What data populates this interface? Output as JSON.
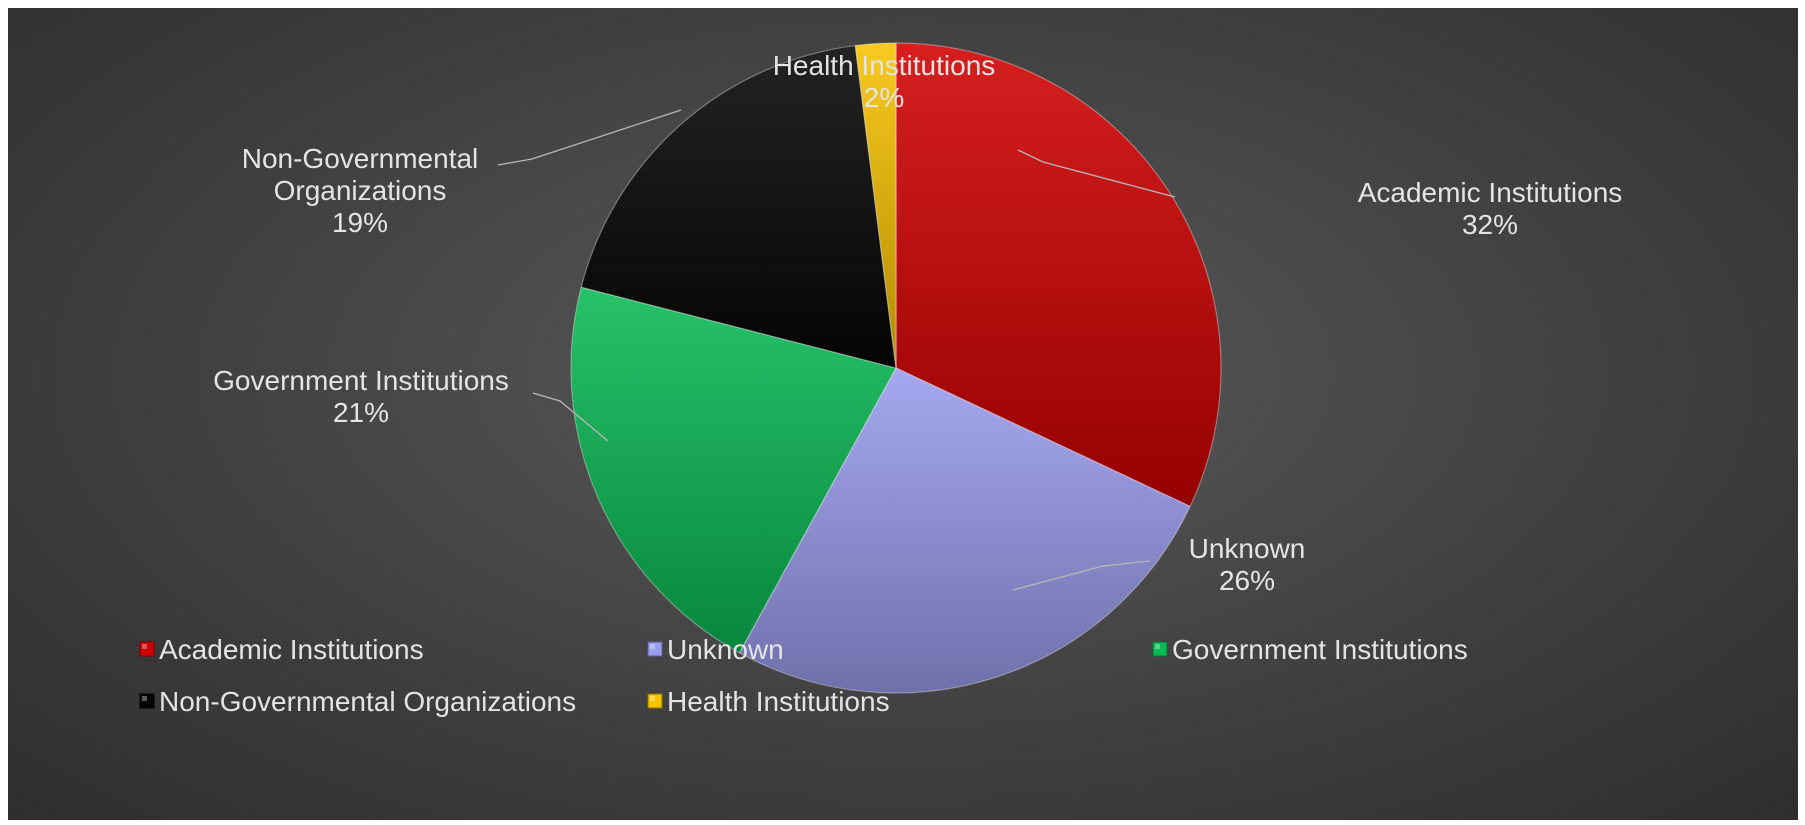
{
  "chart_data": {
    "type": "pie",
    "title": "",
    "categories": [
      "Academic Institutions",
      "Unknown",
      "Government Institutions",
      "Non-Governmental Organizations",
      "Health Institutions"
    ],
    "values": [
      32,
      26,
      21,
      19,
      2
    ],
    "value_labels": [
      "32%",
      "26%",
      "21%",
      "19%",
      "2%"
    ],
    "label_lines": [
      [
        "Academic Institutions"
      ],
      [
        "Unknown"
      ],
      [
        "Government Institutions"
      ],
      [
        "Non-Governmental",
        "Organizations"
      ],
      [
        "Health Institutions"
      ]
    ],
    "colors": [
      "#d00000",
      "#9a9cee",
      "#0aba55",
      "#050505",
      "#f7c200"
    ],
    "start_angle_degrees": 0,
    "direction": "clockwise",
    "legend_position": "bottom"
  }
}
